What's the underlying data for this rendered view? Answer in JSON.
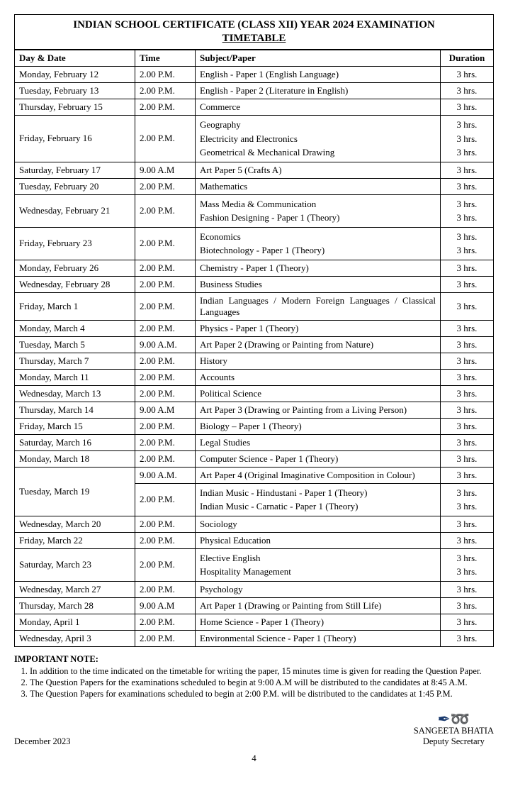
{
  "title": {
    "line1": "INDIAN SCHOOL CERTIFICATE (CLASS XII) YEAR 2024 EXAMINATION",
    "line2": "TIMETABLE"
  },
  "headers": {
    "day": "Day & Date",
    "time": "Time",
    "subject": "Subject/Paper",
    "duration": "Duration"
  },
  "rows": [
    {
      "day": "Monday, February 12",
      "time": "2.00 P.M.",
      "subject": "English - Paper 1 (English Language)",
      "duration": "3 hrs."
    },
    {
      "day": "Tuesday, February 13",
      "time": "2.00 P.M.",
      "subject": "English - Paper 2 (Literature in English)",
      "duration": "3 hrs."
    },
    {
      "day": "Thursday, February 15",
      "time": "2.00 P.M.",
      "subject": "Commerce",
      "duration": "3 hrs."
    },
    {
      "day": "Friday, February 16",
      "time": "2.00 P.M.",
      "subjects": [
        "Geography",
        "Electricity and Electronics",
        "Geometrical & Mechanical Drawing"
      ],
      "durations": [
        "3 hrs.",
        "3 hrs.",
        "3 hrs."
      ]
    },
    {
      "day": "Saturday, February 17",
      "time": "9.00 A.M",
      "subject": "Art Paper 5 (Crafts A)",
      "duration": "3 hrs."
    },
    {
      "day": "Tuesday, February 20",
      "time": "2.00 P.M.",
      "subject": "Mathematics",
      "duration": "3 hrs."
    },
    {
      "day": "Wednesday, February 21",
      "time": "2.00 P.M.",
      "subjects": [
        "Mass Media & Communication",
        "Fashion Designing - Paper 1 (Theory)"
      ],
      "durations": [
        "3 hrs.",
        "3 hrs."
      ]
    },
    {
      "day": "Friday, February 23",
      "time": "2.00 P.M.",
      "subjects": [
        "Economics",
        "Biotechnology - Paper 1 (Theory)"
      ],
      "durations": [
        "3 hrs.",
        "3 hrs."
      ]
    },
    {
      "day": "Monday, February 26",
      "time": "2.00 P.M.",
      "subject": "Chemistry - Paper 1 (Theory)",
      "duration": "3 hrs."
    },
    {
      "day": "Wednesday, February 28",
      "time": "2.00 P.M.",
      "subject": "Business Studies",
      "duration": "3 hrs."
    },
    {
      "day": "Friday, March 1",
      "time": "2.00 P.M.",
      "subject": "Indian Languages / Modern Foreign Languages / Classical Languages",
      "duration": "3 hrs.",
      "justify": true
    },
    {
      "day": "Monday, March 4",
      "time": "2.00 P.M.",
      "subject": "Physics - Paper 1 (Theory)",
      "duration": "3 hrs."
    },
    {
      "day": "Tuesday, March 5",
      "time": "9.00 A.M.",
      "subject": "Art Paper 2 (Drawing or Painting from Nature)",
      "duration": "3 hrs."
    },
    {
      "day": "Thursday, March 7",
      "time": "2.00 P.M.",
      "subject": "History",
      "duration": "3 hrs."
    },
    {
      "day": "Monday, March 11",
      "time": "2.00 P.M.",
      "subject": "Accounts",
      "duration": "3 hrs."
    },
    {
      "day": "Wednesday, March 13",
      "time": "2.00 P.M.",
      "subject": "Political Science",
      "duration": "3 hrs."
    },
    {
      "day": "Thursday, March 14",
      "time": "9.00 A.M",
      "subject": "Art Paper 3 (Drawing or Painting from a Living Person)",
      "duration": "3 hrs."
    },
    {
      "day": "Friday, March 15",
      "time": "2.00 P.M.",
      "subject": "Biology – Paper 1 (Theory)",
      "duration": "3 hrs."
    },
    {
      "day": "Saturday, March 16",
      "time": "2.00 P.M.",
      "subject": "Legal Studies",
      "duration": "3 hrs."
    },
    {
      "day": "Monday, March 18",
      "time": "2.00 P.M.",
      "subject": "Computer Science - Paper 1 (Theory)",
      "duration": "3 hrs."
    },
    {
      "day": "Tuesday, March 19",
      "split": true,
      "sessions": [
        {
          "time": "9.00 A.M.",
          "subject": "Art Paper 4 (Original Imaginative Composition in Colour)",
          "duration": "3 hrs."
        },
        {
          "time": "2.00 P.M.",
          "subjects": [
            "Indian Music - Hindustani - Paper 1 (Theory)",
            "Indian Music - Carnatic - Paper 1 (Theory)"
          ],
          "durations": [
            "3 hrs.",
            "3 hrs."
          ]
        }
      ]
    },
    {
      "day": "Wednesday, March 20",
      "time": "2.00 P.M.",
      "subject": "Sociology",
      "duration": "3 hrs."
    },
    {
      "day": "Friday, March 22",
      "time": "2.00 P.M.",
      "subject": "Physical Education",
      "duration": "3 hrs."
    },
    {
      "day": "Saturday, March 23",
      "time": "2.00 P.M.",
      "subjects": [
        "Elective English",
        "Hospitality Management"
      ],
      "durations": [
        "3 hrs.",
        "3 hrs."
      ]
    },
    {
      "day": "Wednesday, March 27",
      "time": "2.00 P.M.",
      "subject": "Psychology",
      "duration": "3 hrs."
    },
    {
      "day": "Thursday, March 28",
      "time": "9.00 A.M",
      "subject": "Art Paper 1 (Drawing or Painting from Still Life)",
      "duration": "3 hrs."
    },
    {
      "day": "Monday, April 1",
      "time": "2.00 P.M.",
      "subject": "Home Science - Paper 1 (Theory)",
      "duration": "3 hrs."
    },
    {
      "day": "Wednesday, April 3",
      "time": "2.00 P.M.",
      "subject": "Environmental Science - Paper 1 (Theory)",
      "duration": "3 hrs."
    }
  ],
  "notes": {
    "title": "IMPORTANT NOTE:",
    "items": [
      "In addition to the time indicated on the timetable for writing the paper, 15 minutes time is given for reading the Question Paper.",
      "The Question Papers for the examinations scheduled to begin at 9:00 A.M will be distributed to the candidates at 8:45 A.M.",
      "The Question Papers for examinations scheduled to begin at 2:00 P.M. will be distributed to the candidates at 1:45 P.M."
    ]
  },
  "footer": {
    "date": "December 2023",
    "sig_name": "SANGEETA BHATIA",
    "sig_title": "Deputy Secretary",
    "page": "4"
  }
}
